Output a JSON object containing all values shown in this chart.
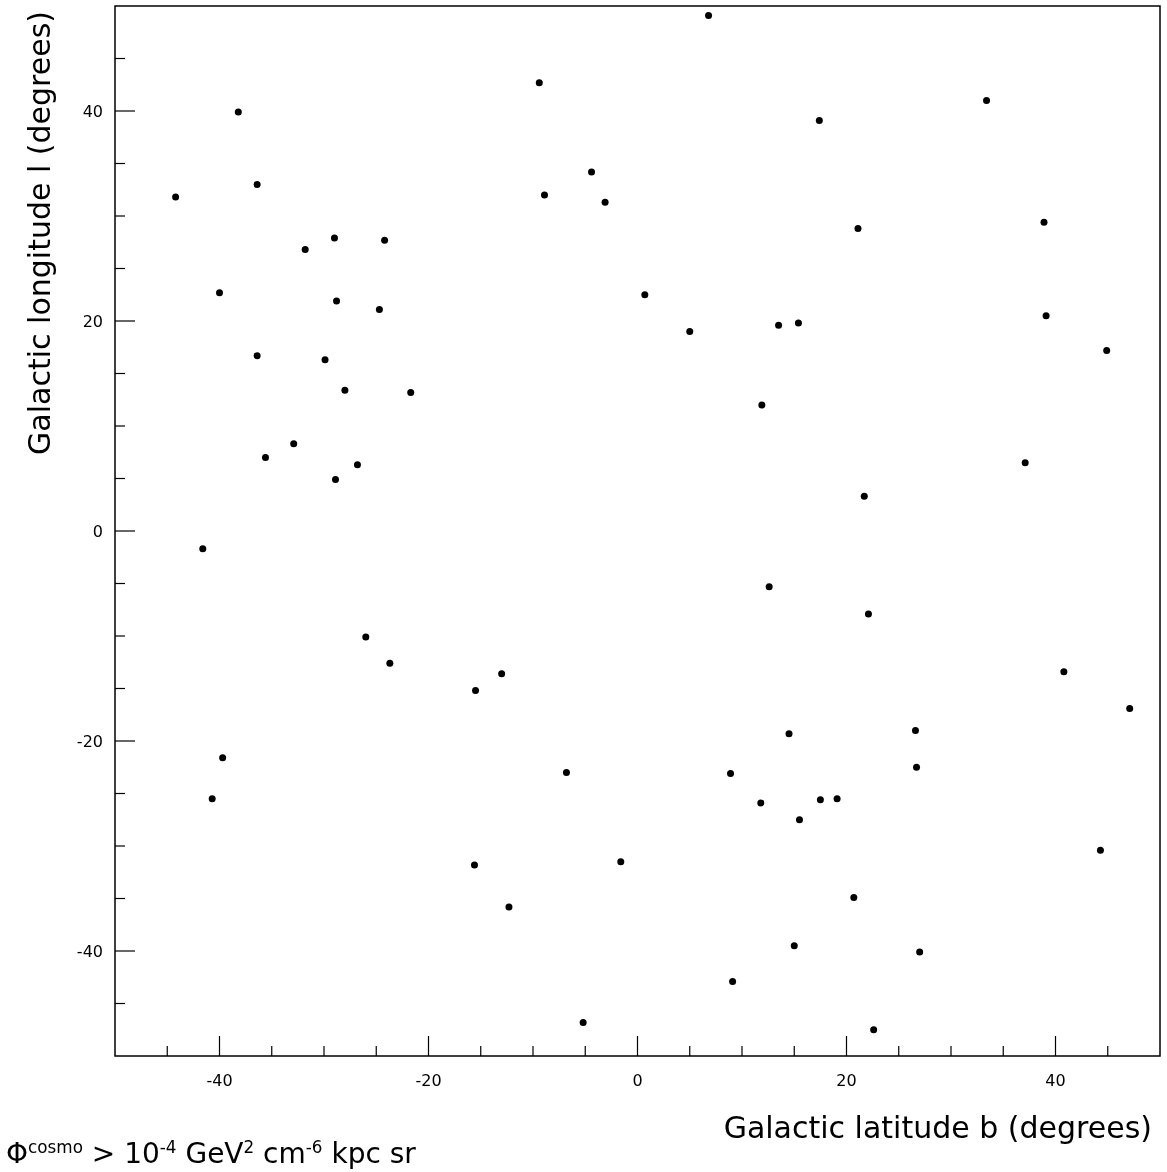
{
  "chart_data": {
    "type": "scatter",
    "xlabel": "Galactic latitude b (degrees)",
    "ylabel": "Galactic longitude l (degrees)",
    "annotations": [
      "Φ$^{cosmo}$ > 10$^{-4}$ GeV$^{2}$ cm$^{-6}$ kpc sr"
    ],
    "xlim": [
      -50,
      50
    ],
    "ylim": [
      -50,
      50
    ],
    "xticks": [
      {
        "value": -45,
        "label": null
      },
      -40,
      {
        "value": -35,
        "label": null
      },
      {
        "value": -30,
        "label": null
      },
      {
        "value": -25,
        "label": null
      },
      -20,
      {
        "value": -15,
        "label": null
      },
      {
        "value": -10,
        "label": null
      },
      {
        "value": -5,
        "label": null
      },
      0,
      {
        "value": 5,
        "label": null
      },
      {
        "value": 10,
        "label": null
      },
      {
        "value": 15,
        "label": null
      },
      20,
      {
        "value": 25,
        "label": null
      },
      {
        "value": 30,
        "label": null
      },
      {
        "value": 35,
        "label": null
      },
      40,
      {
        "value": 45,
        "label": null
      }
    ],
    "yticks": [
      {
        "value": -45,
        "label": null
      },
      -40,
      {
        "value": -35,
        "label": null
      },
      {
        "value": -30,
        "label": null
      },
      {
        "value": -25,
        "label": null
      },
      -20,
      {
        "value": -15,
        "label": null
      },
      {
        "value": -10,
        "label": null
      },
      {
        "value": -5,
        "label": null
      },
      0,
      {
        "value": 5,
        "label": null
      },
      {
        "value": 10,
        "label": null
      },
      {
        "value": 15,
        "label": null
      },
      20,
      {
        "value": 25,
        "label": null
      },
      {
        "value": 30,
        "label": null
      },
      {
        "value": 35,
        "label": null
      },
      40,
      {
        "value": 45,
        "label": null
      }
    ],
    "marker": "circle",
    "grid": false,
    "series": [
      {
        "color": "#000000",
        "x": [
          -9.4,
          -38.2,
          -36.4,
          -44.2,
          -8.9,
          -4.4,
          -3.1,
          -29.0,
          -24.2,
          -31.8,
          -40.0,
          -28.8,
          -24.7,
          -36.4,
          -29.9,
          -28.0,
          -21.7,
          -32.9,
          -35.6,
          -28.9,
          -26.8,
          6.8,
          33.4,
          17.4,
          21.1,
          38.9,
          0.7,
          5.0,
          13.5,
          15.4,
          39.1,
          44.9,
          11.9,
          37.1,
          21.7,
          -41.6,
          -26.0,
          -23.7,
          -13.0,
          -15.5,
          -39.7,
          -40.7,
          -6.8,
          -15.6,
          -1.6,
          -12.3,
          -5.2,
          12.6,
          22.1,
          40.8,
          47.1,
          14.5,
          26.6,
          26.7,
          8.9,
          11.8,
          17.5,
          19.1,
          15.5,
          44.3,
          20.7,
          15.0,
          27.0,
          9.1,
          22.6
        ],
        "values": [
          42.7,
          39.9,
          33.0,
          31.8,
          32.0,
          34.2,
          31.3,
          27.9,
          27.7,
          26.8,
          22.7,
          21.9,
          21.1,
          16.7,
          16.3,
          13.4,
          13.2,
          8.3,
          7.0,
          4.9,
          6.3,
          49.1,
          41.0,
          39.1,
          28.8,
          29.4,
          22.5,
          19.0,
          19.6,
          19.8,
          20.5,
          17.2,
          12.0,
          6.5,
          3.3,
          -1.7,
          -10.1,
          -12.6,
          -13.6,
          -15.2,
          -21.6,
          -25.5,
          -23.0,
          -31.8,
          -31.5,
          -35.8,
          -46.8,
          -5.3,
          -7.9,
          -13.4,
          -16.9,
          -19.3,
          -19.0,
          -22.5,
          -23.1,
          -25.9,
          -25.6,
          -25.5,
          -27.5,
          -30.4,
          -34.9,
          -39.5,
          -40.1,
          -42.9,
          -47.5
        ]
      }
    ]
  }
}
